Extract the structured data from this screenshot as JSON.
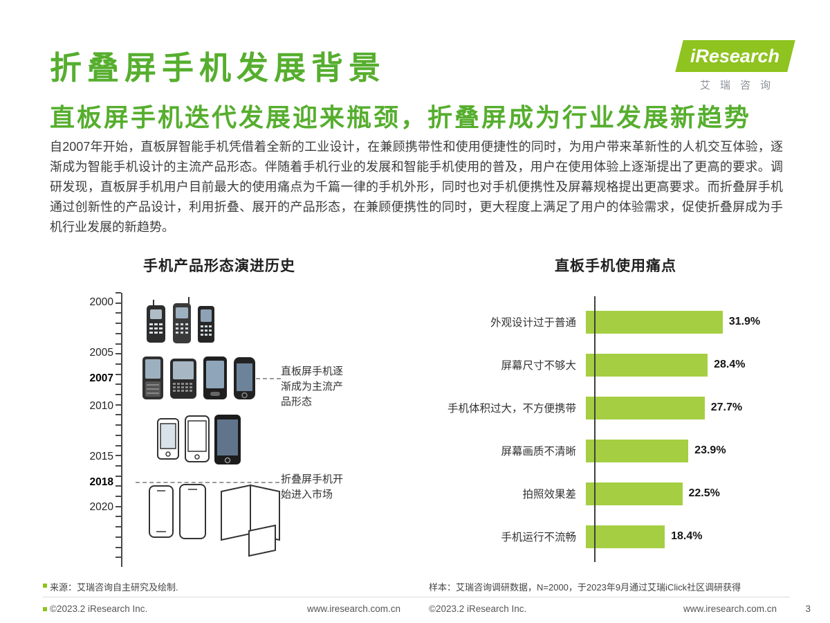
{
  "page": {
    "title": "折叠屏手机发展背景",
    "subtitle": "直板屏手机迭代发展迎来瓶颈，折叠屏成为行业发展新趋势",
    "body": "自2007年开始，直板屏智能手机凭借着全新的工业设计，在兼顾携带性和使用便捷性的同时，为用户带来革新性的人机交互体验，逐渐成为智能手机设计的主流产品形态。伴随着手机行业的发展和智能手机使用的普及，用户在使用体验上逐渐提出了更高的要求。调研发现，直板屏手机用户目前最大的使用痛点为千篇一律的手机外形，同时也对手机便携性及屏幕规格提出更高要求。而折叠屏手机通过创新性的产品设计，利用折叠、展开的产品形态，在兼顾便携性的同时，更大程度上满足了用户的体验需求，促使折叠屏成为手机行业发展的新趋势。",
    "page_number": "3"
  },
  "logo": {
    "brand": "iResearch",
    "brand_cn": "艾瑞咨询"
  },
  "colors": {
    "title_green": "#56AE2E",
    "logo_green": "#8FC31F",
    "bar_green": "#A5CE43"
  },
  "footer": {
    "source_left": "来源：艾瑞咨询自主研究及绘制.",
    "source_right": "样本：艾瑞咨询调研数据，N=2000，于2023年9月通过艾瑞iClick社区调研获得",
    "copyright": "©2023.2 iResearch Inc.",
    "website": "www.iresearch.com.cn"
  },
  "chart_data": [
    {
      "type": "timeline",
      "title": "手机产品形态演进历史",
      "years": [
        "2000",
        "2005",
        "2007",
        "2010",
        "2015",
        "2018",
        "2020"
      ],
      "bold_years": [
        "2007",
        "2018"
      ],
      "annotations": [
        {
          "year": "2007",
          "text": "直板屏手机逐渐成为主流产品形态"
        },
        {
          "year": "2018",
          "text": "折叠屏手机开始进入市场"
        }
      ]
    },
    {
      "type": "bar",
      "orientation": "horizontal",
      "title": "直板手机使用痛点",
      "categories": [
        "外观设计过于普通",
        "屏幕尺寸不够大",
        "手机体积过大，不方便携带",
        "屏幕画质不清晰",
        "拍照效果差",
        "手机运行不流畅"
      ],
      "values": [
        31.9,
        28.4,
        27.7,
        23.9,
        22.5,
        18.4
      ],
      "labels": [
        "31.9%",
        "28.4%",
        "27.7%",
        "23.9%",
        "22.5%",
        "18.4%"
      ],
      "unit": "%",
      "xlim": [
        0,
        35
      ],
      "bar_color": "#A5CE43",
      "grid": false,
      "legend": false
    }
  ]
}
